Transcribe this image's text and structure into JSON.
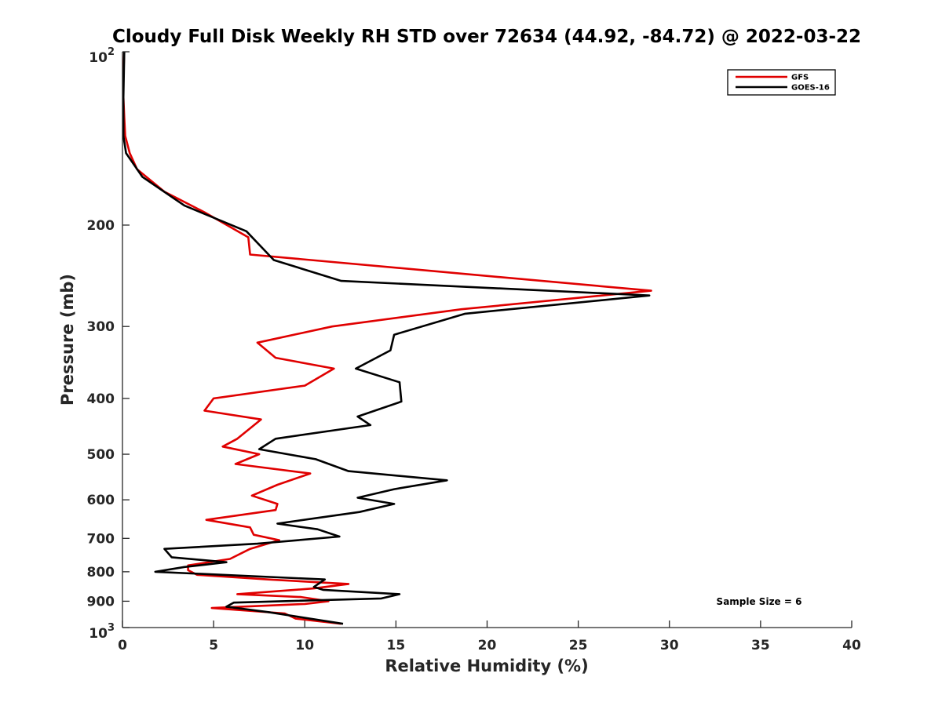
{
  "chart_data": {
    "type": "line",
    "title": "Cloudy Full Disk Weekly RH STD over 72634 (44.92, -84.72) @ 2022-03-22",
    "xlabel": "Relative Humidity (%)",
    "ylabel": "Pressure (mb)",
    "xlim": [
      0,
      40
    ],
    "ylim": [
      100,
      1000
    ],
    "y_scale": "log",
    "y_reversed": true,
    "grid": false,
    "legend_position": "top-right",
    "x_ticks": [
      0,
      5,
      10,
      15,
      20,
      25,
      30,
      35,
      40
    ],
    "y_ticks": [
      {
        "value": 100,
        "base": "10",
        "exp": "2"
      },
      {
        "value": 200,
        "label": "200"
      },
      {
        "value": 300,
        "label": "300"
      },
      {
        "value": 400,
        "label": "400"
      },
      {
        "value": 500,
        "label": "500"
      },
      {
        "value": 600,
        "label": "600"
      },
      {
        "value": 700,
        "label": "700"
      },
      {
        "value": 800,
        "label": "800"
      },
      {
        "value": 900,
        "label": "900"
      },
      {
        "value": 1000,
        "base": "10",
        "exp": "3"
      }
    ],
    "annotation": "Sample Size = 6",
    "series": [
      {
        "name": "GFS",
        "color": "#e00000",
        "points": [
          [
            0.1,
            100
          ],
          [
            0.05,
            110
          ],
          [
            0.05,
            120
          ],
          [
            0.1,
            130
          ],
          [
            0.15,
            140
          ],
          [
            0.4,
            150
          ],
          [
            0.8,
            160
          ],
          [
            2.3,
            175
          ],
          [
            4.5,
            190
          ],
          [
            6.9,
            210
          ],
          [
            7.0,
            225
          ],
          [
            29.0,
            260
          ],
          [
            18.6,
            280
          ],
          [
            11.5,
            300
          ],
          [
            7.4,
            320
          ],
          [
            8.4,
            340
          ],
          [
            11.6,
            355
          ],
          [
            10.0,
            380
          ],
          [
            5.0,
            400
          ],
          [
            4.5,
            420
          ],
          [
            7.6,
            435
          ],
          [
            6.3,
            470
          ],
          [
            5.5,
            485
          ],
          [
            7.5,
            500
          ],
          [
            6.2,
            520
          ],
          [
            10.3,
            540
          ],
          [
            8.5,
            565
          ],
          [
            7.1,
            590
          ],
          [
            8.5,
            610
          ],
          [
            8.4,
            625
          ],
          [
            4.6,
            650
          ],
          [
            7.0,
            670
          ],
          [
            7.2,
            690
          ],
          [
            8.6,
            705
          ],
          [
            7.0,
            730
          ],
          [
            5.9,
            760
          ],
          [
            3.6,
            780
          ],
          [
            3.6,
            795
          ],
          [
            4.1,
            810
          ],
          [
            8.0,
            825
          ],
          [
            12.4,
            840
          ],
          [
            10.5,
            855
          ],
          [
            6.3,
            875
          ],
          [
            9.8,
            885
          ],
          [
            11.3,
            900
          ],
          [
            10.0,
            910
          ],
          [
            4.9,
            925
          ],
          [
            8.9,
            945
          ],
          [
            9.5,
            965
          ],
          [
            12.0,
            985
          ]
        ]
      },
      {
        "name": "GOES-16",
        "color": "#000000",
        "points": [
          [
            0.1,
            100
          ],
          [
            0.05,
            120
          ],
          [
            0.05,
            140
          ],
          [
            0.2,
            150
          ],
          [
            1.1,
            165
          ],
          [
            3.4,
            185
          ],
          [
            6.8,
            205
          ],
          [
            8.3,
            230
          ],
          [
            12.0,
            250
          ],
          [
            28.9,
            265
          ],
          [
            18.8,
            285
          ],
          [
            14.9,
            310
          ],
          [
            14.7,
            330
          ],
          [
            12.8,
            355
          ],
          [
            15.2,
            375
          ],
          [
            15.3,
            405
          ],
          [
            12.9,
            430
          ],
          [
            13.6,
            445
          ],
          [
            8.4,
            470
          ],
          [
            7.5,
            490
          ],
          [
            10.6,
            510
          ],
          [
            12.4,
            535
          ],
          [
            17.8,
            555
          ],
          [
            14.9,
            575
          ],
          [
            12.9,
            595
          ],
          [
            14.9,
            610
          ],
          [
            13.0,
            630
          ],
          [
            8.5,
            660
          ],
          [
            10.7,
            675
          ],
          [
            11.9,
            695
          ],
          [
            7.4,
            715
          ],
          [
            2.3,
            730
          ],
          [
            2.7,
            755
          ],
          [
            5.7,
            770
          ],
          [
            3.4,
            785
          ],
          [
            1.8,
            800
          ],
          [
            11.1,
            825
          ],
          [
            10.5,
            850
          ],
          [
            11.0,
            860
          ],
          [
            15.2,
            875
          ],
          [
            14.2,
            890
          ],
          [
            6.1,
            905
          ],
          [
            5.7,
            920
          ],
          [
            8.0,
            940
          ],
          [
            12.1,
            985
          ]
        ]
      }
    ]
  }
}
